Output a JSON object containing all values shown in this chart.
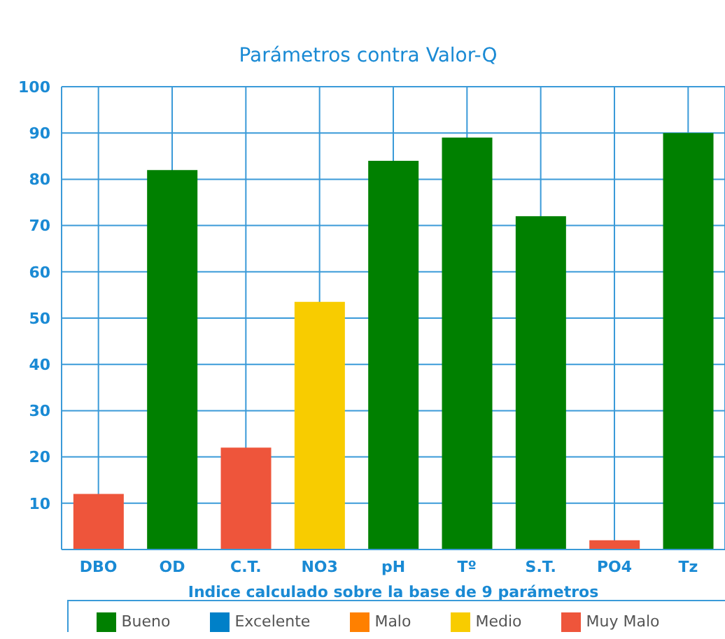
{
  "chart_data": {
    "type": "bar",
    "title": "Parámetros contra Valor-Q",
    "xlabel": "Indice calculado sobre la base de 9 parámetros",
    "categories": [
      "DBO",
      "OD",
      "C.T.",
      "NO3",
      "pH",
      "Tº",
      "S.T.",
      "PO4",
      "Tz"
    ],
    "series": [
      {
        "name": "Excelente",
        "color": "#0080c8",
        "values": [
          null,
          null,
          null,
          null,
          null,
          null,
          null,
          null,
          null
        ]
      },
      {
        "name": "Bueno",
        "color": "#008000",
        "values": [
          null,
          82,
          null,
          null,
          84,
          89,
          72,
          null,
          90
        ]
      },
      {
        "name": "Medio",
        "color": "#f8cc00",
        "values": [
          null,
          null,
          null,
          53.5,
          null,
          null,
          null,
          null,
          null
        ]
      },
      {
        "name": "Malo",
        "color": "#ff8000",
        "values": [
          null,
          null,
          null,
          null,
          null,
          null,
          null,
          null,
          null
        ]
      },
      {
        "name": "Muy Malo",
        "color": "#ee553b",
        "values": [
          12,
          null,
          22,
          null,
          null,
          null,
          null,
          2,
          null
        ]
      }
    ],
    "stacked": true,
    "ylim": [
      0,
      100
    ],
    "yticks": [
      10,
      20,
      30,
      40,
      50,
      60,
      70,
      80,
      90,
      100
    ],
    "grid": true,
    "legend": "bottom"
  }
}
